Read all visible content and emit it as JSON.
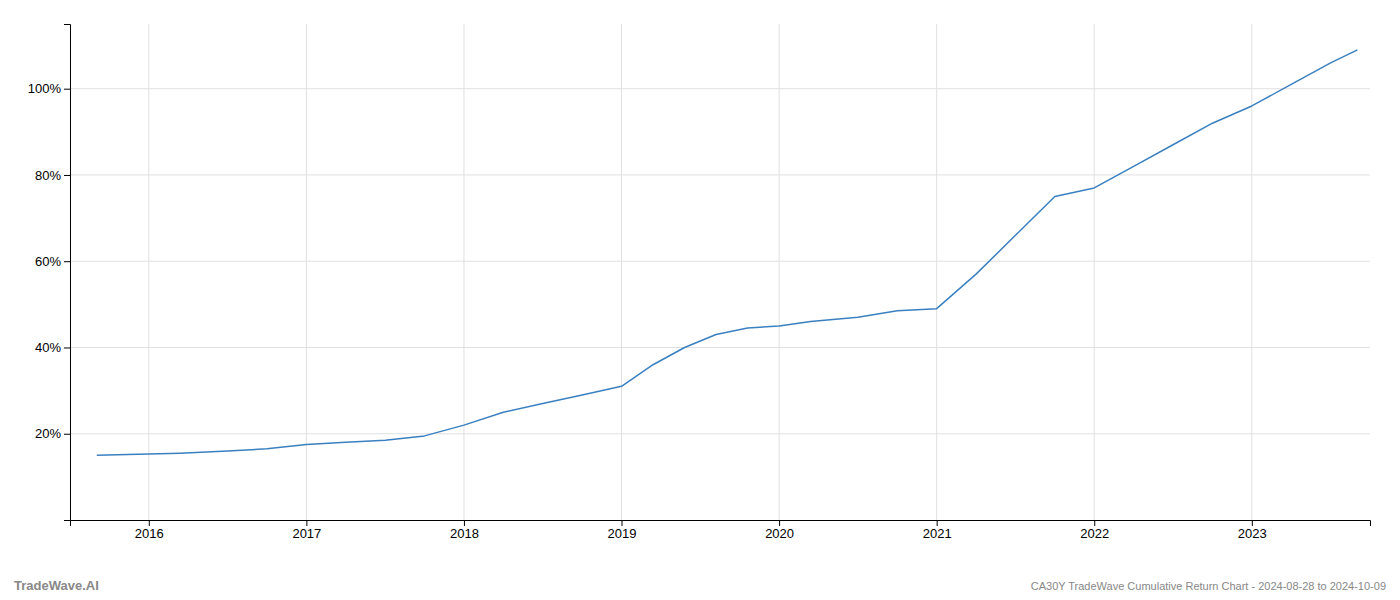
{
  "chart_data": {
    "type": "line",
    "title": "CA30Y TradeWave Cumulative Return Chart - 2024-08-28 to 2024-10-09",
    "annotations": [
      "TradeWave.AI"
    ],
    "color": "#3a80c0",
    "x": [
      2015.67,
      2016.0,
      2016.2,
      2016.5,
      2016.75,
      2017.0,
      2017.25,
      2017.5,
      2017.75,
      2018.0,
      2018.25,
      2018.5,
      2018.75,
      2019.0,
      2019.2,
      2019.4,
      2019.6,
      2019.8,
      2020.0,
      2020.2,
      2020.5,
      2020.75,
      2021.0,
      2021.25,
      2021.5,
      2021.75,
      2022.0,
      2022.25,
      2022.5,
      2022.75,
      2023.0,
      2023.25,
      2023.5,
      2023.67
    ],
    "values": [
      15,
      15.3,
      15.5,
      16,
      16.5,
      17.5,
      18,
      18.5,
      19.5,
      22,
      25,
      27,
      29,
      31,
      36,
      40,
      43,
      44.5,
      45,
      46,
      47,
      48.5,
      49,
      57,
      66,
      75,
      77,
      82,
      87,
      92,
      96,
      101,
      106,
      109
    ],
    "xlim": [
      2015.5,
      2023.75
    ],
    "xticks": [
      2016,
      2017,
      2018,
      2019,
      2020,
      2021,
      2022,
      2023
    ],
    "ylim": [
      0,
      115
    ],
    "yticks": [
      {
        "value": 20,
        "label": "20%"
      },
      {
        "value": 40,
        "label": "40%"
      },
      {
        "value": 60,
        "label": "60%"
      },
      {
        "value": 80,
        "label": "80%"
      },
      {
        "value": 100,
        "label": "100%"
      }
    ],
    "grid": true
  }
}
